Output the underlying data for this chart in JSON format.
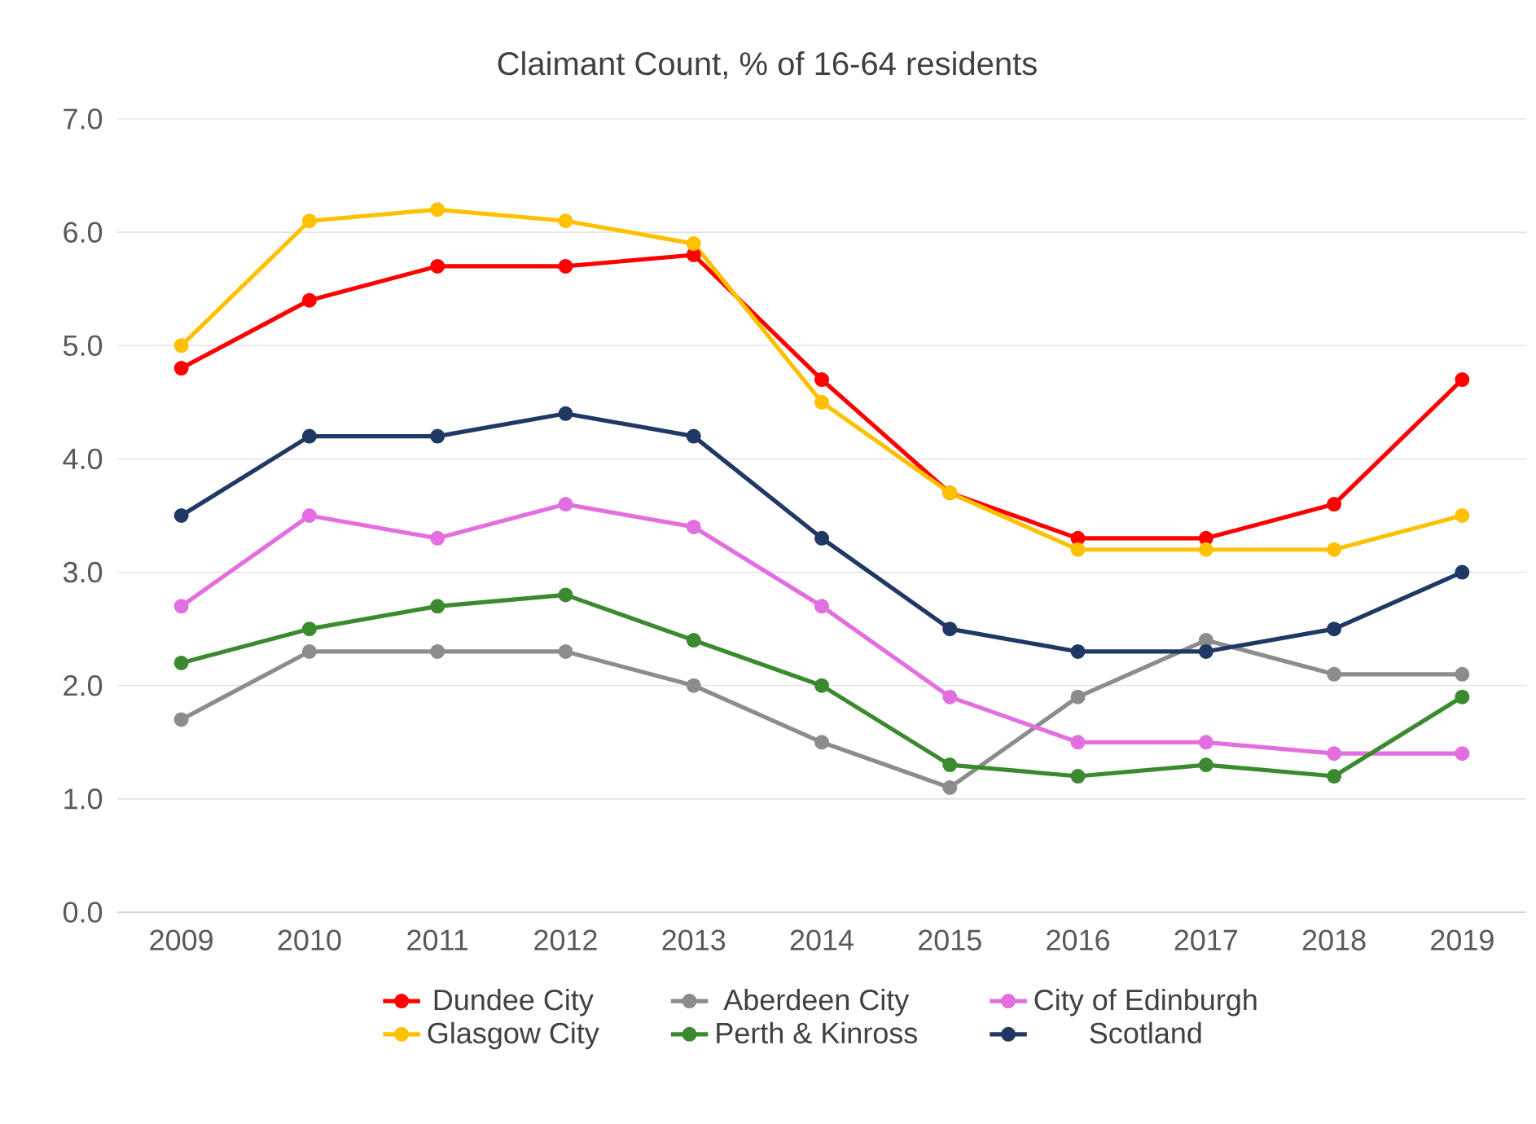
{
  "chart_data": {
    "type": "line",
    "title": "Claimant Count, % of 16-64 residents",
    "categories": [
      "2009",
      "2010",
      "2011",
      "2012",
      "2013",
      "2014",
      "2015",
      "2016",
      "2017",
      "2018",
      "2019"
    ],
    "series": [
      {
        "name": "Dundee City",
        "color": "#ff0000",
        "values": [
          4.8,
          5.4,
          5.7,
          5.7,
          5.8,
          4.7,
          3.7,
          3.3,
          3.3,
          3.6,
          4.7
        ]
      },
      {
        "name": "Aberdeen City",
        "color": "#8c8c8c",
        "values": [
          1.7,
          2.3,
          2.3,
          2.3,
          2.0,
          1.5,
          1.1,
          1.9,
          2.4,
          2.1,
          2.1
        ]
      },
      {
        "name": "City of Edinburgh",
        "color": "#e36ee0",
        "values": [
          2.7,
          3.5,
          3.3,
          3.6,
          3.4,
          2.7,
          1.9,
          1.5,
          1.5,
          1.4,
          1.4
        ]
      },
      {
        "name": "Glasgow City",
        "color": "#ffc000",
        "values": [
          5.0,
          6.1,
          6.2,
          6.1,
          5.9,
          4.5,
          3.7,
          3.2,
          3.2,
          3.2,
          3.5
        ]
      },
      {
        "name": "Perth & Kinross",
        "color": "#3b8a2f",
        "values": [
          2.2,
          2.5,
          2.7,
          2.8,
          2.4,
          2.0,
          1.3,
          1.2,
          1.3,
          1.2,
          1.9
        ]
      },
      {
        "name": "Scotland",
        "color": "#1f3864",
        "values": [
          3.5,
          4.2,
          4.2,
          4.4,
          4.2,
          3.3,
          2.5,
          2.3,
          2.3,
          2.5,
          3.0
        ]
      }
    ],
    "ylim": [
      0,
      7
    ],
    "yticks": [
      {
        "value": 0,
        "label": "0.0"
      },
      {
        "value": 1,
        "label": "1.0"
      },
      {
        "value": 2,
        "label": "2.0"
      },
      {
        "value": 3,
        "label": "3.0"
      },
      {
        "value": 4,
        "label": "4.0"
      },
      {
        "value": 5,
        "label": "5.0"
      },
      {
        "value": 6,
        "label": "6.0"
      },
      {
        "value": 7,
        "label": "7.0"
      }
    ],
    "grid": "y",
    "legend": "bottom",
    "marker": "circle",
    "line_style": "solid"
  }
}
